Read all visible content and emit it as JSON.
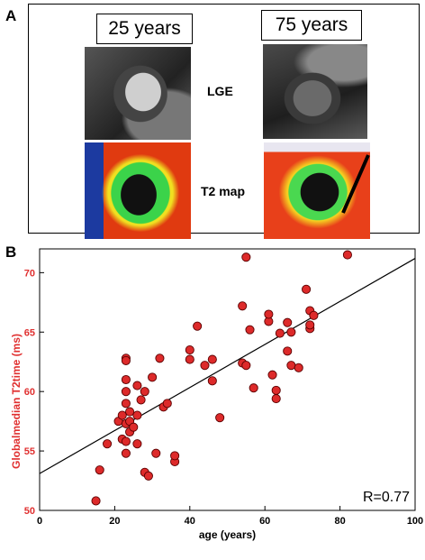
{
  "panelA": {
    "letter": "A",
    "age_young": "25 years",
    "age_old": "75 years",
    "label_lge": "LGE",
    "label_t2": "T2 map"
  },
  "panelB": {
    "letter": "B"
  },
  "chart_data": {
    "type": "scatter",
    "xlabel": "age (years)",
    "ylabel": "Globalmedian T2time (ms)",
    "xlim": [
      0,
      100
    ],
    "ylim": [
      50,
      72
    ],
    "xticks": [
      0,
      20,
      40,
      60,
      80,
      100
    ],
    "yticks": [
      50,
      55,
      60,
      65,
      70
    ],
    "annotation": "R=0.77",
    "point_color": "#dd2a2a",
    "ylabel_color": "#e03030",
    "points": [
      [
        15,
        50.8
      ],
      [
        16,
        53.4
      ],
      [
        18,
        55.6
      ],
      [
        21,
        57.5
      ],
      [
        22,
        56.0
      ],
      [
        22,
        58.0
      ],
      [
        23,
        55.8
      ],
      [
        23,
        54.8
      ],
      [
        23,
        57.3
      ],
      [
        23,
        59.0
      ],
      [
        23,
        60.0
      ],
      [
        23,
        61.0
      ],
      [
        23,
        62.8
      ],
      [
        23,
        62.6
      ],
      [
        24,
        56.6
      ],
      [
        24,
        57.5
      ],
      [
        24,
        58.3
      ],
      [
        25,
        57.0
      ],
      [
        26,
        58.0
      ],
      [
        26,
        60.5
      ],
      [
        26,
        55.6
      ],
      [
        27,
        59.3
      ],
      [
        28,
        60.0
      ],
      [
        28,
        53.2
      ],
      [
        29,
        52.9
      ],
      [
        30,
        61.2
      ],
      [
        31,
        54.8
      ],
      [
        32,
        62.8
      ],
      [
        33,
        58.7
      ],
      [
        34,
        59.0
      ],
      [
        36,
        54.1
      ],
      [
        36,
        54.6
      ],
      [
        40,
        63.5
      ],
      [
        40,
        62.7
      ],
      [
        42,
        65.5
      ],
      [
        44,
        62.2
      ],
      [
        46,
        62.7
      ],
      [
        46,
        60.9
      ],
      [
        48,
        57.8
      ],
      [
        54,
        62.4
      ],
      [
        54,
        67.2
      ],
      [
        55,
        71.3
      ],
      [
        55,
        62.2
      ],
      [
        56,
        65.2
      ],
      [
        57,
        60.3
      ],
      [
        61,
        65.9
      ],
      [
        61,
        66.5
      ],
      [
        62,
        61.4
      ],
      [
        63,
        60.1
      ],
      [
        63,
        59.4
      ],
      [
        64,
        64.9
      ],
      [
        66,
        63.4
      ],
      [
        66,
        65.8
      ],
      [
        67,
        65.0
      ],
      [
        67,
        62.2
      ],
      [
        69,
        62.0
      ],
      [
        71,
        68.6
      ],
      [
        72,
        65.3
      ],
      [
        72,
        66.8
      ],
      [
        72,
        65.6
      ],
      [
        73,
        66.4
      ],
      [
        82,
        71.5
      ]
    ],
    "fit_line": {
      "x": [
        0,
        100
      ],
      "y": [
        53.1,
        71.2
      ]
    }
  }
}
